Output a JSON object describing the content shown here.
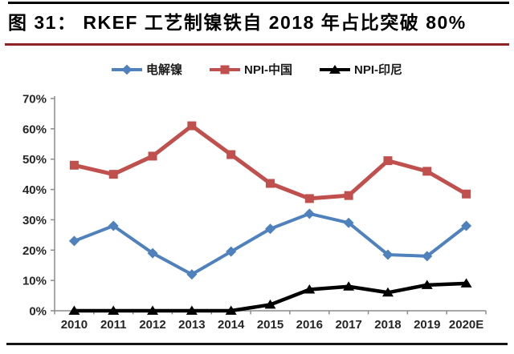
{
  "header": {
    "title": "图 31： RKEF 工艺制镍铁自 2018 年占比突破 80%"
  },
  "colors": {
    "top_divider": "#000000",
    "title_underline": "#8E2424",
    "bottom_divider": "#141414",
    "axis_line": "#8C8C8C",
    "tick_label": "#262626"
  },
  "chart_data": {
    "type": "line",
    "title": "",
    "xlabel": "",
    "ylabel": "",
    "categories": [
      "2010",
      "2011",
      "2012",
      "2013",
      "2014",
      "2015",
      "2016",
      "2017",
      "2018",
      "2019",
      "2020E"
    ],
    "series": [
      {
        "id": "electrolytic-nickel",
        "name": "电解镍",
        "color": "#4F81BD",
        "marker": "diamond",
        "values": [
          23,
          28,
          19,
          12,
          19.5,
          27,
          32,
          29,
          18.5,
          18,
          28
        ]
      },
      {
        "id": "npi-china",
        "name": "NPI-中国",
        "color": "#C0504D",
        "marker": "square",
        "values": [
          48,
          45,
          51,
          61,
          51.5,
          42,
          37,
          38,
          49.5,
          46,
          38.5
        ]
      },
      {
        "id": "npi-indonesia",
        "name": "NPI-印尼",
        "color": "#000000",
        "marker": "triangle",
        "values": [
          0,
          0,
          0,
          0,
          0,
          2,
          7,
          8,
          6,
          8.5,
          9
        ]
      }
    ],
    "ylim": [
      0,
      70
    ],
    "ytick_step": 10,
    "ytick_labels": [
      "0%",
      "10%",
      "20%",
      "30%",
      "40%",
      "50%",
      "60%",
      "70%"
    ],
    "grid": false,
    "legend_position": "top-center"
  }
}
